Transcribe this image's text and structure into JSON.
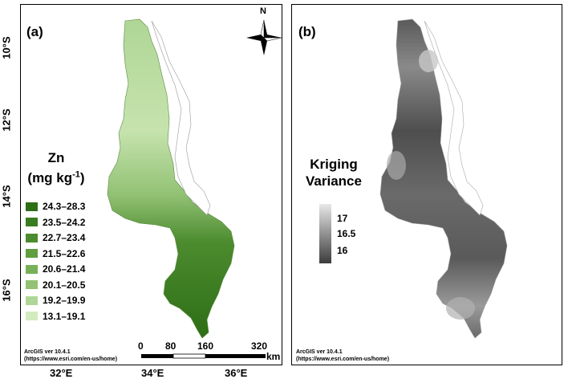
{
  "panel_a": {
    "tag": "(a)",
    "legend_title_line1": "Zn",
    "legend_title_line2_base": "(mg kg",
    "legend_title_line2_sup": "-1",
    "legend_title_line2_end": ")",
    "legend": [
      {
        "label": "24.3–28.3",
        "color": "#2d6e16"
      },
      {
        "label": "23.5–24.2",
        "color": "#3a7d20"
      },
      {
        "label": "22.7–23.4",
        "color": "#4c8b2e"
      },
      {
        "label": "21.5–22.6",
        "color": "#609e40"
      },
      {
        "label": "20.6–21.4",
        "color": "#78b058"
      },
      {
        "label": "20.1–20.5",
        "color": "#92c274"
      },
      {
        "label": "19.2–19.9",
        "color": "#afd696"
      },
      {
        "label": "13.1–19.1",
        "color": "#d3ecbf"
      }
    ],
    "north_label": "N",
    "scale_ticks": [
      "0",
      "80",
      "160",
      "320"
    ],
    "scale_unit": "km",
    "credit_line1": "ArcGIS ver 10.4.1",
    "credit_line2": "(https://www.esri.com/en-us/home)"
  },
  "panel_b": {
    "tag": "(b)",
    "legend_title_line1": "Kriging",
    "legend_title_line2": "Variance",
    "ramp_labels": [
      "17",
      "16.5",
      "16"
    ],
    "credit_line1": "ArcGIS ver 10.4.1",
    "credit_line2": "(https://www.esri.com/en-us/home)"
  },
  "axes": {
    "y_ticks": [
      "10°S",
      "12°S",
      "14°S",
      "16°S"
    ],
    "x_ticks": [
      "32°E",
      "34°E",
      "36°E"
    ]
  },
  "colors": {
    "zn_dark": "#2d6e16",
    "zn_light": "#d3ecbf",
    "variance_high": "#e8e8e8",
    "variance_low": "#3c3c3c"
  }
}
